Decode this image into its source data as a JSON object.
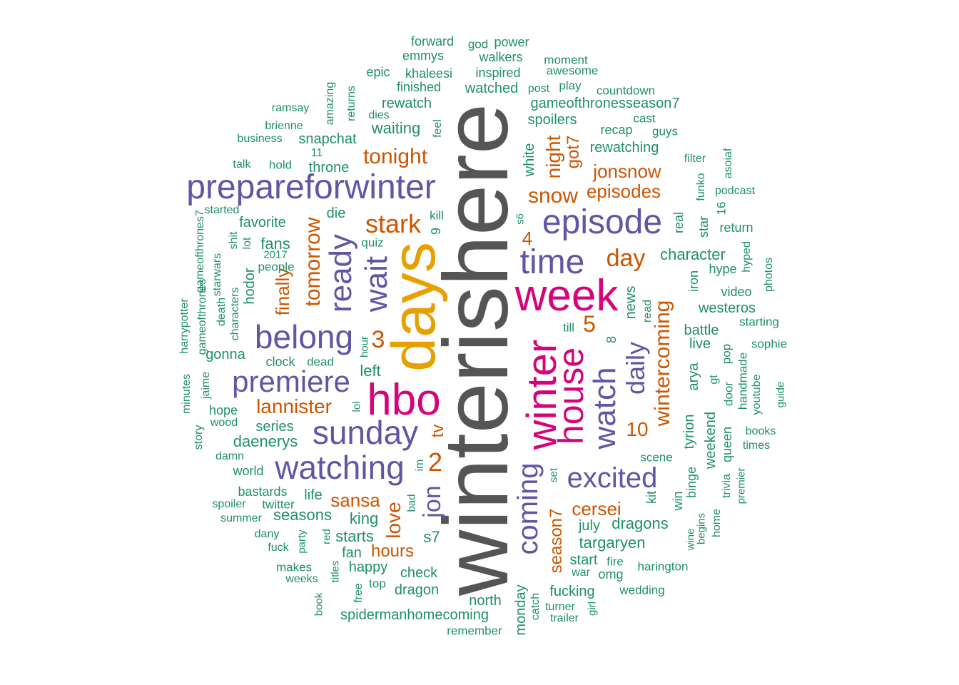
{
  "palette": {
    "gray": "#555555",
    "gold": "#e6a000",
    "magenta": "#d6047a",
    "purple": "#6255a4",
    "orange": "#cc5500",
    "green": "#1f8f6a"
  },
  "words": [
    {
      "t": "winterishere",
      "c": "gray",
      "v": 1
    },
    {
      "t": "days",
      "c": "gold",
      "v": 1
    },
    {
      "t": "hbo",
      "c": "magenta",
      "v": 0
    },
    {
      "t": "week",
      "c": "magenta",
      "v": 0
    },
    {
      "t": "winter",
      "c": "magenta",
      "v": 1
    },
    {
      "t": "house",
      "c": "magenta",
      "v": 1
    },
    {
      "t": "prepareforwinter",
      "c": "purple",
      "v": 0
    },
    {
      "t": "episode",
      "c": "purple",
      "v": 0
    },
    {
      "t": "time",
      "c": "purple",
      "v": 0
    },
    {
      "t": "sunday",
      "c": "purple",
      "v": 0
    },
    {
      "t": "watching",
      "c": "purple",
      "v": 0
    },
    {
      "t": "belong",
      "c": "purple",
      "v": 0
    },
    {
      "t": "premiere",
      "c": "purple",
      "v": 0
    },
    {
      "t": "excited",
      "c": "purple",
      "v": 0
    },
    {
      "t": "watch",
      "c": "purple",
      "v": 1
    },
    {
      "t": "wait",
      "c": "purple",
      "v": 1
    },
    {
      "t": "ready",
      "c": "purple",
      "v": 1
    },
    {
      "t": "coming",
      "c": "purple",
      "v": 1
    },
    {
      "t": "daily",
      "c": "purple",
      "v": 1
    },
    {
      "t": "jon",
      "c": "purple",
      "v": 1
    },
    {
      "t": "tonight",
      "c": "orange",
      "v": 0
    },
    {
      "t": "stark",
      "c": "orange",
      "v": 0
    },
    {
      "t": "snow",
      "c": "orange",
      "v": 0
    },
    {
      "t": "day",
      "c": "orange",
      "v": 0
    },
    {
      "t": "lannister",
      "c": "orange",
      "v": 0
    },
    {
      "t": "sansa",
      "c": "orange",
      "v": 0
    },
    {
      "t": "cersei",
      "c": "orange",
      "v": 0
    },
    {
      "t": "jonsnow",
      "c": "orange",
      "v": 0
    },
    {
      "t": "episodes",
      "c": "orange",
      "v": 0
    },
    {
      "t": "hours",
      "c": "orange",
      "v": 0
    },
    {
      "t": "3",
      "c": "orange",
      "v": 0
    },
    {
      "t": "2",
      "c": "orange",
      "v": 0
    },
    {
      "t": "5",
      "c": "orange",
      "v": 0
    },
    {
      "t": "4",
      "c": "orange",
      "v": 0
    },
    {
      "t": "10",
      "c": "orange",
      "v": 0
    },
    {
      "t": "tomorrow",
      "c": "orange",
      "v": 1
    },
    {
      "t": "finally",
      "c": "orange",
      "v": 1
    },
    {
      "t": "night",
      "c": "orange",
      "v": 1
    },
    {
      "t": "got7",
      "c": "orange",
      "v": 1
    },
    {
      "t": "wintercoming",
      "c": "orange",
      "v": 1
    },
    {
      "t": "love",
      "c": "orange",
      "v": 1
    },
    {
      "t": "tv",
      "c": "orange",
      "v": 1
    },
    {
      "t": "season7",
      "c": "orange",
      "v": 1
    },
    {
      "t": "forward",
      "c": "green",
      "v": 0
    },
    {
      "t": "god",
      "c": "green",
      "v": 0
    },
    {
      "t": "power",
      "c": "green",
      "v": 0
    },
    {
      "t": "emmys",
      "c": "green",
      "v": 0
    },
    {
      "t": "walkers",
      "c": "green",
      "v": 0
    },
    {
      "t": "moment",
      "c": "green",
      "v": 0
    },
    {
      "t": "epic",
      "c": "green",
      "v": 0
    },
    {
      "t": "khaleesi",
      "c": "green",
      "v": 0
    },
    {
      "t": "inspired",
      "c": "green",
      "v": 0
    },
    {
      "t": "awesome",
      "c": "green",
      "v": 0
    },
    {
      "t": "finished",
      "c": "green",
      "v": 0
    },
    {
      "t": "watched",
      "c": "green",
      "v": 0
    },
    {
      "t": "post",
      "c": "green",
      "v": 0
    },
    {
      "t": "play",
      "c": "green",
      "v": 0
    },
    {
      "t": "countdown",
      "c": "green",
      "v": 0
    },
    {
      "t": "ramsay",
      "c": "green",
      "v": 0
    },
    {
      "t": "rewatch",
      "c": "green",
      "v": 0
    },
    {
      "t": "gameofthronesseason7",
      "c": "green",
      "v": 0
    },
    {
      "t": "dies",
      "c": "green",
      "v": 0
    },
    {
      "t": "cast",
      "c": "green",
      "v": 0
    },
    {
      "t": "brienne",
      "c": "green",
      "v": 0
    },
    {
      "t": "spoilers",
      "c": "green",
      "v": 0
    },
    {
      "t": "waiting",
      "c": "green",
      "v": 0
    },
    {
      "t": "recap",
      "c": "green",
      "v": 0
    },
    {
      "t": "guys",
      "c": "green",
      "v": 0
    },
    {
      "t": "business",
      "c": "green",
      "v": 0
    },
    {
      "t": "snapchat",
      "c": "green",
      "v": 0
    },
    {
      "t": "rewatching",
      "c": "green",
      "v": 0
    },
    {
      "t": "11",
      "c": "green",
      "v": 0
    },
    {
      "t": "filter",
      "c": "green",
      "v": 0
    },
    {
      "t": "talk",
      "c": "green",
      "v": 0
    },
    {
      "t": "hold",
      "c": "green",
      "v": 0
    },
    {
      "t": "throne",
      "c": "green",
      "v": 0
    },
    {
      "t": "podcast",
      "c": "green",
      "v": 0
    },
    {
      "t": "started",
      "c": "green",
      "v": 0
    },
    {
      "t": "die",
      "c": "green",
      "v": 0
    },
    {
      "t": "kill",
      "c": "green",
      "v": 0
    },
    {
      "t": "favorite",
      "c": "green",
      "v": 0
    },
    {
      "t": "return",
      "c": "green",
      "v": 0
    },
    {
      "t": "fans",
      "c": "green",
      "v": 0
    },
    {
      "t": "quiz",
      "c": "green",
      "v": 0
    },
    {
      "t": "2017",
      "c": "green",
      "v": 0
    },
    {
      "t": "character",
      "c": "green",
      "v": 0
    },
    {
      "t": "people",
      "c": "green",
      "v": 0
    },
    {
      "t": "hype",
      "c": "green",
      "v": 0
    },
    {
      "t": "video",
      "c": "green",
      "v": 0
    },
    {
      "t": "westeros",
      "c": "green",
      "v": 0
    },
    {
      "t": "starting",
      "c": "green",
      "v": 0
    },
    {
      "t": "battle",
      "c": "green",
      "v": 0
    },
    {
      "t": "till",
      "c": "green",
      "v": 0
    },
    {
      "t": "live",
      "c": "green",
      "v": 0
    },
    {
      "t": "sophie",
      "c": "green",
      "v": 0
    },
    {
      "t": "gonna",
      "c": "green",
      "v": 0
    },
    {
      "t": "clock",
      "c": "green",
      "v": 0
    },
    {
      "t": "dead",
      "c": "green",
      "v": 0
    },
    {
      "t": "left",
      "c": "green",
      "v": 0
    },
    {
      "t": "hope",
      "c": "green",
      "v": 0
    },
    {
      "t": "wood",
      "c": "green",
      "v": 0
    },
    {
      "t": "series",
      "c": "green",
      "v": 0
    },
    {
      "t": "daenerys",
      "c": "green",
      "v": 0
    },
    {
      "t": "books",
      "c": "green",
      "v": 0
    },
    {
      "t": "times",
      "c": "green",
      "v": 0
    },
    {
      "t": "damn",
      "c": "green",
      "v": 0
    },
    {
      "t": "world",
      "c": "green",
      "v": 0
    },
    {
      "t": "scene",
      "c": "green",
      "v": 0
    },
    {
      "t": "bastards",
      "c": "green",
      "v": 0
    },
    {
      "t": "life",
      "c": "green",
      "v": 0
    },
    {
      "t": "spoiler",
      "c": "green",
      "v": 0
    },
    {
      "t": "twitter",
      "c": "green",
      "v": 0
    },
    {
      "t": "summer",
      "c": "green",
      "v": 0
    },
    {
      "t": "seasons",
      "c": "green",
      "v": 0
    },
    {
      "t": "king",
      "c": "green",
      "v": 0
    },
    {
      "t": "july",
      "c": "green",
      "v": 0
    },
    {
      "t": "dragons",
      "c": "green",
      "v": 0
    },
    {
      "t": "dany",
      "c": "green",
      "v": 0
    },
    {
      "t": "starts",
      "c": "green",
      "v": 0
    },
    {
      "t": "s7",
      "c": "green",
      "v": 0
    },
    {
      "t": "targaryen",
      "c": "green",
      "v": 0
    },
    {
      "t": "fuck",
      "c": "green",
      "v": 0
    },
    {
      "t": "fan",
      "c": "green",
      "v": 0
    },
    {
      "t": "start",
      "c": "green",
      "v": 0
    },
    {
      "t": "fire",
      "c": "green",
      "v": 0
    },
    {
      "t": "makes",
      "c": "green",
      "v": 0
    },
    {
      "t": "happy",
      "c": "green",
      "v": 0
    },
    {
      "t": "check",
      "c": "green",
      "v": 0
    },
    {
      "t": "war",
      "c": "green",
      "v": 0
    },
    {
      "t": "omg",
      "c": "green",
      "v": 0
    },
    {
      "t": "harington",
      "c": "green",
      "v": 0
    },
    {
      "t": "weeks",
      "c": "green",
      "v": 0
    },
    {
      "t": "top",
      "c": "green",
      "v": 0
    },
    {
      "t": "dragon",
      "c": "green",
      "v": 0
    },
    {
      "t": "fucking",
      "c": "green",
      "v": 0
    },
    {
      "t": "wedding",
      "c": "green",
      "v": 0
    },
    {
      "t": "north",
      "c": "green",
      "v": 0
    },
    {
      "t": "turner",
      "c": "green",
      "v": 0
    },
    {
      "t": "spidermanhomecoming",
      "c": "green",
      "v": 0
    },
    {
      "t": "trailer",
      "c": "green",
      "v": 0
    },
    {
      "t": "remember",
      "c": "green",
      "v": 0
    },
    {
      "t": "amazing",
      "c": "green",
      "v": 1
    },
    {
      "t": "returns",
      "c": "green",
      "v": 1
    },
    {
      "t": "feel",
      "c": "green",
      "v": 1
    },
    {
      "t": "white",
      "c": "green",
      "v": 1
    },
    {
      "t": "asoiaf",
      "c": "green",
      "v": 1
    },
    {
      "t": "funko",
      "c": "green",
      "v": 1
    },
    {
      "t": "16",
      "c": "green",
      "v": 1
    },
    {
      "t": "9",
      "c": "green",
      "v": 1
    },
    {
      "t": "s6",
      "c": "green",
      "v": 1
    },
    {
      "t": "real",
      "c": "green",
      "v": 1
    },
    {
      "t": "star",
      "c": "green",
      "v": 1
    },
    {
      "t": "gameofthrones7",
      "c": "green",
      "v": 1
    },
    {
      "t": "shit",
      "c": "green",
      "v": 1
    },
    {
      "t": "lot",
      "c": "green",
      "v": 1
    },
    {
      "t": "hyped",
      "c": "green",
      "v": 1
    },
    {
      "t": "photos",
      "c": "green",
      "v": 1
    },
    {
      "t": "starwars",
      "c": "green",
      "v": 1
    },
    {
      "t": "hodor",
      "c": "green",
      "v": 1
    },
    {
      "t": "iron",
      "c": "green",
      "v": 1
    },
    {
      "t": "news",
      "c": "green",
      "v": 1
    },
    {
      "t": "read",
      "c": "green",
      "v": 1
    },
    {
      "t": "8",
      "c": "green",
      "v": 1
    },
    {
      "t": "death",
      "c": "green",
      "v": 1
    },
    {
      "t": "characters",
      "c": "green",
      "v": 1
    },
    {
      "t": "harrypotter",
      "c": "green",
      "v": 1
    },
    {
      "t": "gameofthrones",
      "c": "green",
      "v": 1
    },
    {
      "t": "hour",
      "c": "green",
      "v": 1
    },
    {
      "t": "arya",
      "c": "green",
      "v": 1
    },
    {
      "t": "pop",
      "c": "green",
      "v": 1
    },
    {
      "t": "gt",
      "c": "green",
      "v": 1
    },
    {
      "t": "door",
      "c": "green",
      "v": 1
    },
    {
      "t": "handmade",
      "c": "green",
      "v": 1
    },
    {
      "t": "jaime",
      "c": "green",
      "v": 1
    },
    {
      "t": "minutes",
      "c": "green",
      "v": 1
    },
    {
      "t": "lol",
      "c": "green",
      "v": 1
    },
    {
      "t": "youtube",
      "c": "green",
      "v": 1
    },
    {
      "t": "guide",
      "c": "green",
      "v": 1
    },
    {
      "t": "tyrion",
      "c": "green",
      "v": 1
    },
    {
      "t": "weekend",
      "c": "green",
      "v": 1
    },
    {
      "t": "queen",
      "c": "green",
      "v": 1
    },
    {
      "t": "story",
      "c": "green",
      "v": 1
    },
    {
      "t": "im",
      "c": "green",
      "v": 1
    },
    {
      "t": "set",
      "c": "green",
      "v": 1
    },
    {
      "t": "binge",
      "c": "green",
      "v": 1
    },
    {
      "t": "kit",
      "c": "green",
      "v": 1
    },
    {
      "t": "win",
      "c": "green",
      "v": 1
    },
    {
      "t": "trivia",
      "c": "green",
      "v": 1
    },
    {
      "t": "premier",
      "c": "green",
      "v": 1
    },
    {
      "t": "bad",
      "c": "green",
      "v": 1
    },
    {
      "t": "home",
      "c": "green",
      "v": 1
    },
    {
      "t": "begins",
      "c": "green",
      "v": 1
    },
    {
      "t": "wine",
      "c": "green",
      "v": 1
    },
    {
      "t": "party",
      "c": "green",
      "v": 1
    },
    {
      "t": "red",
      "c": "green",
      "v": 1
    },
    {
      "t": "titles",
      "c": "green",
      "v": 1
    },
    {
      "t": "free",
      "c": "green",
      "v": 1
    },
    {
      "t": "book",
      "c": "green",
      "v": 1
    },
    {
      "t": "catch",
      "c": "green",
      "v": 1
    },
    {
      "t": "monday",
      "c": "green",
      "v": 1
    },
    {
      "t": "girl",
      "c": "green",
      "v": 1
    }
  ]
}
